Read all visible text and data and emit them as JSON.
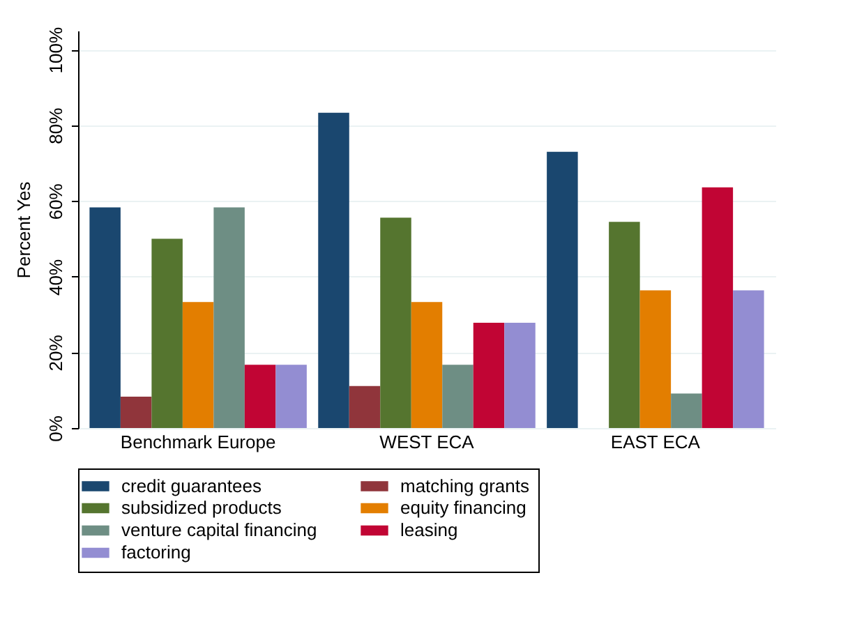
{
  "chart_data": {
    "type": "bar",
    "ylabel": "Percent Yes",
    "categories": [
      "Benchmark Europe",
      "WEST ECA",
      "EAST ECA"
    ],
    "series": [
      {
        "name": "credit guarantees",
        "color": "#1a476f",
        "values": [
          58.3,
          83.3,
          73
        ]
      },
      {
        "name": "matching grants",
        "color": "#90353b",
        "values": [
          8.3,
          11.1,
          0
        ]
      },
      {
        "name": "subsidized products",
        "color": "#55752f",
        "values": [
          50,
          55.6,
          54.5
        ]
      },
      {
        "name": "equity financing",
        "color": "#e37e00",
        "values": [
          33.3,
          33.3,
          36.4
        ]
      },
      {
        "name": "venture capital financing",
        "color": "#6e8e84",
        "values": [
          58.3,
          16.7,
          9.1
        ]
      },
      {
        "name": "leasing",
        "color": "#c10534",
        "values": [
          16.7,
          27.8,
          63.6
        ]
      },
      {
        "name": "factoring",
        "color": "#938dd2",
        "values": [
          16.7,
          27.8,
          36.4
        ]
      }
    ],
    "ylim": [
      0,
      105
    ],
    "yticks": [
      {
        "value": 0,
        "label": "0%"
      },
      {
        "value": 20,
        "label": "20%"
      },
      {
        "value": 40,
        "label": "40%"
      },
      {
        "value": 60,
        "label": "60%"
      },
      {
        "value": 80,
        "label": "80%"
      },
      {
        "value": 100,
        "label": "100%"
      }
    ],
    "grid": "y",
    "legend": "bottom"
  }
}
